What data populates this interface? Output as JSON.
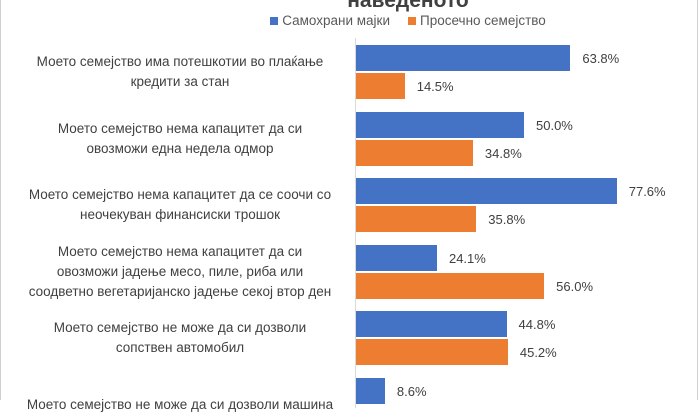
{
  "chart_data": {
    "type": "bar",
    "orientation": "horizontal",
    "title": "наведеното",
    "xlabel": "",
    "ylabel": "",
    "xlim": [
      0,
      100
    ],
    "grid": false,
    "legend_position": "top",
    "categories": [
      [
        "Моето семејство има потешкотии во плаќање",
        "кредити за стан"
      ],
      [
        "Моето семејство нема капацитет да си",
        "овозможи една недела одмор"
      ],
      [
        "Моето семејство нема капацитет да се соочи со",
        "неочекуван финансиски трошок"
      ],
      [
        "Моето семејство нема капацитет да си",
        "овозможи јадење месо, пиле, риба или",
        "соодветно вегетаријанско јадење секој втор ден"
      ],
      [
        "Моето семејство не може да си дозволи",
        "сопствен автомобил"
      ],
      [
        "Моето семејство не може да си дозволи машина"
      ]
    ],
    "series": [
      {
        "name": "Самохрани мајки",
        "color": "#4472c4",
        "values": [
          63.8,
          50.0,
          77.6,
          24.1,
          44.8,
          8.6
        ],
        "labels": [
          "63.8%",
          "50.0%",
          "77.6%",
          "24.1%",
          "44.8%",
          "8.6%"
        ]
      },
      {
        "name": "Просечно семејство",
        "color": "#ed7d31",
        "values": [
          14.5,
          34.8,
          35.8,
          56.0,
          45.2,
          null
        ],
        "labels": [
          "14.5%",
          "34.8%",
          "35.8%",
          "56.0%",
          "45.2%",
          null
        ]
      }
    ]
  }
}
